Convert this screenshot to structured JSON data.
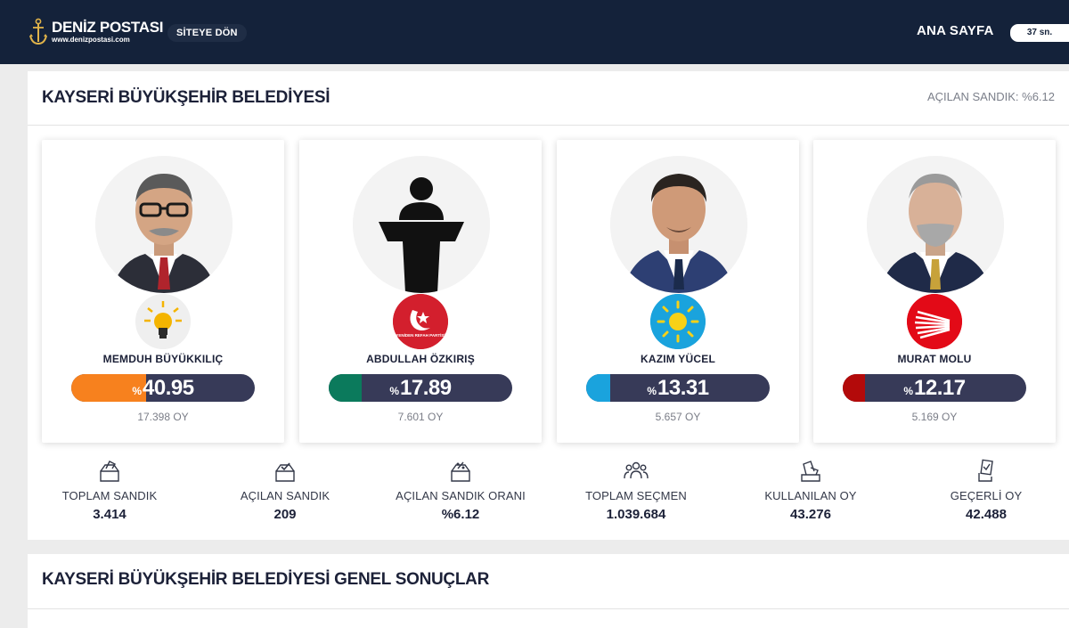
{
  "header": {
    "logo_name": "DENİZ POSTASI",
    "logo_url": "www.denizpostasi.com",
    "back_label": "SİTEYE DÖN",
    "home_label": "ANA SAYFA",
    "timer": "37 sn.",
    "bg_color": "#14223a"
  },
  "results": {
    "title": "KAYSERİ BÜYÜKŞEHİR BELEDİYESİ",
    "opened_label": "AÇILAN SANDIK: %6.12",
    "candidates": [
      {
        "name": "MEMDUH BÜYÜKKILIÇ",
        "pct_sign": "%",
        "pct": "40.95",
        "pct_value": 40.95,
        "votes": "17.398 OY",
        "party_icon": "akp-lightbulb-icon",
        "color": "#f7811e"
      },
      {
        "name": "ABDULLAH ÖZKIRIŞ",
        "pct_sign": "%",
        "pct": "17.89",
        "pct_value": 17.89,
        "votes": "7.601 OY",
        "party_icon": "yeniden-refah-icon",
        "party_text": "YENİDEN REFAH PARTİSİ",
        "color": "#0b7a5c"
      },
      {
        "name": "KAZIM YÜCEL",
        "pct_sign": "%",
        "pct": "13.31",
        "pct_value": 13.31,
        "votes": "5.657 OY",
        "party_icon": "iyi-parti-sun-icon",
        "color": "#1aa3dd"
      },
      {
        "name": "MURAT MOLU",
        "pct_sign": "%",
        "pct": "12.17",
        "pct_value": 12.17,
        "votes": "5.169 OY",
        "party_icon": "chp-six-arrows-icon",
        "color": "#c00d0d"
      }
    ],
    "stats": [
      {
        "label": "TOPLAM SANDIK",
        "value": "3.414",
        "icon": "ballot-box-icon"
      },
      {
        "label": "AÇILAN SANDIK",
        "value": "209",
        "icon": "ballot-box-check-icon"
      },
      {
        "label": "AÇILAN SANDIK ORANI",
        "value": "%6.12",
        "icon": "ballot-box-percent-icon"
      },
      {
        "label": "TOPLAM SEÇMEN",
        "value": "1.039.684",
        "icon": "voters-group-icon"
      },
      {
        "label": "KULLANILAN OY",
        "value": "43.276",
        "icon": "vote-cast-icon"
      },
      {
        "label": "GEÇERLİ OY",
        "value": "42.488",
        "icon": "valid-vote-icon"
      }
    ]
  },
  "general": {
    "title": "KAYSERİ BÜYÜKŞEHİR BELEDİYESİ GENEL SONUÇLAR"
  }
}
